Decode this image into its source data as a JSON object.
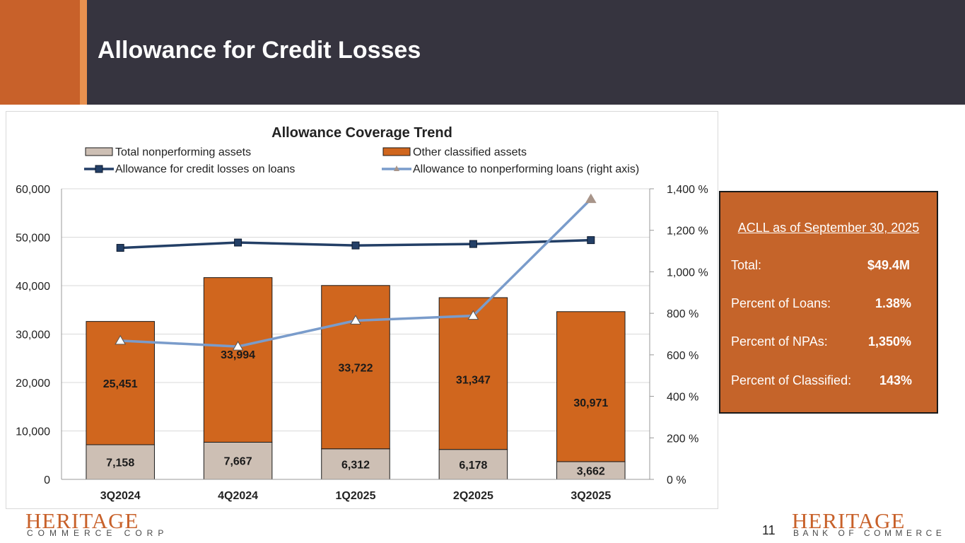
{
  "header": {
    "title": "Allowance for Credit Losses"
  },
  "colors": {
    "header_bg": "#36343f",
    "accent": "#c8612a",
    "npa": "#cdbfb4",
    "other_classified": "#d0661e",
    "allowance_line": "#233f66",
    "ratio_line": "#7a9ccb",
    "ratio_marker": "#a8958a"
  },
  "chart_data": {
    "type": "bar",
    "title": "Allowance Coverage Trend",
    "legend_position": "top",
    "categories": [
      "3Q2024",
      "4Q2024",
      "1Q2025",
      "2Q2025",
      "3Q2025"
    ],
    "stacked": true,
    "series": [
      {
        "name": "Total nonperforming assets",
        "type": "bar",
        "axis": "left",
        "values": [
          7158,
          7667,
          6312,
          6178,
          3662
        ],
        "labels": [
          "7,158",
          "7,667",
          "6,312",
          "6,178",
          "3,662"
        ]
      },
      {
        "name": "Other classified assets",
        "type": "bar",
        "axis": "left",
        "values": [
          25451,
          33994,
          33722,
          31347,
          30971
        ],
        "labels": [
          "25,451",
          "33,994",
          "33,722",
          "31,347",
          "30,971"
        ]
      },
      {
        "name": "Allowance for credit losses on loans",
        "type": "line",
        "axis": "left",
        "marker": "square",
        "values": [
          47800,
          48900,
          48300,
          48600,
          49400
        ]
      },
      {
        "name": "Allowance to nonperforming loans (right axis)",
        "type": "line",
        "axis": "right",
        "marker": "triangle",
        "values": [
          668,
          640,
          765,
          788,
          1350
        ]
      }
    ],
    "y_left": {
      "min": 0,
      "max": 60000,
      "ticks": [
        "0",
        "10,000",
        "20,000",
        "30,000",
        "40,000",
        "50,000",
        "60,000"
      ]
    },
    "y_right": {
      "min": 0,
      "max": 1400,
      "ticks": [
        "0 %",
        "200 %",
        "400 %",
        "600 %",
        "800 %",
        "1,000 %",
        "1,200 %",
        "1,400 %"
      ]
    },
    "grid": true
  },
  "info_box": {
    "heading": "ACLL as of September 30, 2025",
    "rows": [
      {
        "label": "Total:",
        "value": "$49.4M"
      },
      {
        "label": "Percent of Loans:",
        "value": "1.38%"
      },
      {
        "label": "Percent of NPAs:",
        "value": "1,350%"
      },
      {
        "label": "Percent of Classified:",
        "value": "143%"
      }
    ]
  },
  "footer": {
    "logo_left": {
      "main": "HERITAGE",
      "sub": "COMMERCE CORP"
    },
    "logo_right": {
      "main": "HERITAGE",
      "sub": "BANK OF COMMERCE"
    },
    "page_number": "11"
  }
}
